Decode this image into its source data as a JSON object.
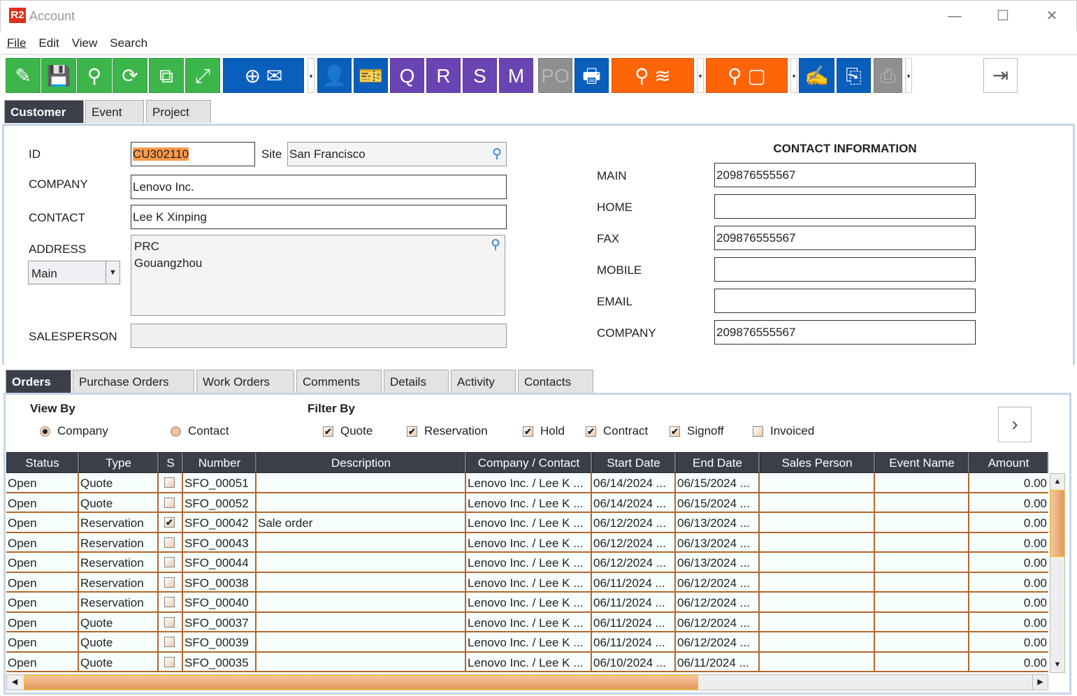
{
  "window": {
    "logo": "R2",
    "title": "Account",
    "minimize_icon": "minimize-icon",
    "maximize_icon": "maximize-icon",
    "close_icon": "close-icon"
  },
  "menu": [
    "File",
    "Edit",
    "View",
    "Search"
  ],
  "toolbar": [
    {
      "name": "edit-broom",
      "icon": "✎",
      "color": "green"
    },
    {
      "name": "save",
      "icon": "💾",
      "color": "green"
    },
    {
      "name": "search",
      "icon": "⚲",
      "color": "green"
    },
    {
      "name": "refresh",
      "icon": "⟳",
      "color": "green"
    },
    {
      "name": "hierarchy",
      "icon": "⧉",
      "color": "green"
    },
    {
      "name": "expand",
      "icon": "⤢",
      "color": "green"
    },
    {
      "name": "new-email",
      "icon": "⊕ ✉",
      "color": "blue"
    },
    {
      "name": "contact-person",
      "icon": "👤",
      "color": "blue"
    },
    {
      "name": "ticket",
      "icon": "🎫",
      "color": "blue"
    },
    {
      "name": "quote-doc",
      "icon": "Q",
      "color": "purple"
    },
    {
      "name": "reservation-doc",
      "icon": "R",
      "color": "purple"
    },
    {
      "name": "signoff-doc",
      "icon": "S",
      "color": "purple"
    },
    {
      "name": "m-doc",
      "icon": "M",
      "color": "purple"
    },
    {
      "name": "po-doc",
      "icon": "PO",
      "color": "gray"
    },
    {
      "name": "cash-register",
      "icon": "🖶",
      "color": "blue"
    },
    {
      "name": "search-inventory",
      "icon": "⚲ ≋",
      "color": "orange"
    },
    {
      "name": "search-box",
      "icon": "⚲ ▢",
      "color": "orange"
    },
    {
      "name": "edit-card",
      "icon": "✍",
      "color": "blue"
    },
    {
      "name": "copy-docs",
      "icon": "⎘",
      "color": "blue"
    },
    {
      "name": "print",
      "icon": "⎙",
      "color": "gray"
    }
  ],
  "exit_icon": "exit-icon",
  "top_tabs": [
    "Customer",
    "Event",
    "Project"
  ],
  "form": {
    "id_label": "ID",
    "id_value": "CU302110",
    "site_label": "Site",
    "site_value": "San Francisco",
    "company_label": "COMPANY",
    "company_value": "Lenovo Inc.",
    "contact_label": "CONTACT",
    "contact_value": "Lee K Xinping",
    "address_label": "ADDRESS",
    "address_type": "Main",
    "address_lines": [
      "PRC",
      "Gouangzhou"
    ],
    "salesperson_label": "SALESPERSON",
    "salesperson_value": ""
  },
  "contact_info": {
    "heading": "CONTACT INFORMATION",
    "fields": [
      {
        "label": "MAIN",
        "value": "209876555567"
      },
      {
        "label": "HOME",
        "value": ""
      },
      {
        "label": "FAX",
        "value": "209876555567"
      },
      {
        "label": "MOBILE",
        "value": ""
      },
      {
        "label": "EMAIL",
        "value": ""
      },
      {
        "label": "COMPANY",
        "value": "209876555567"
      }
    ]
  },
  "bottom_tabs": [
    "Orders",
    "Purchase Orders",
    "Work Orders",
    "Comments",
    "Details",
    "Activity",
    "Contacts"
  ],
  "view_by": {
    "label": "View By",
    "options": [
      {
        "label": "Company",
        "selected": true
      },
      {
        "label": "Contact",
        "selected": false
      }
    ]
  },
  "filter_by": {
    "label": "Filter By",
    "options": [
      {
        "label": "Quote",
        "checked": true
      },
      {
        "label": "Reservation",
        "checked": true
      },
      {
        "label": "Hold",
        "checked": true
      },
      {
        "label": "Contract",
        "checked": true
      },
      {
        "label": "Signoff",
        "checked": true
      },
      {
        "label": "Invoiced",
        "checked": false
      }
    ]
  },
  "table": {
    "columns": [
      "Status",
      "Type",
      "S",
      "Number",
      "Description",
      "Company / Contact",
      "Start Date",
      "End Date",
      "Sales Person",
      "Event Name",
      "Amount"
    ],
    "rows": [
      [
        "Open",
        "Quote",
        false,
        "SFO_00051",
        "",
        "Lenovo Inc. / Lee K ...",
        "06/14/2024 ...",
        "06/15/2024 ...",
        "",
        "",
        "0.00"
      ],
      [
        "Open",
        "Quote",
        false,
        "SFO_00052",
        "",
        "Lenovo Inc. / Lee K ...",
        "06/14/2024 ...",
        "06/15/2024 ...",
        "",
        "",
        "0.00"
      ],
      [
        "Open",
        "Reservation",
        true,
        "SFO_00042",
        "Sale order",
        "Lenovo Inc. / Lee K ...",
        "06/12/2024 ...",
        "06/13/2024 ...",
        "",
        "",
        "0.00"
      ],
      [
        "Open",
        "Reservation",
        false,
        "SFO_00043",
        "",
        "Lenovo Inc. / Lee K ...",
        "06/12/2024 ...",
        "06/13/2024 ...",
        "",
        "",
        "0.00"
      ],
      [
        "Open",
        "Reservation",
        false,
        "SFO_00044",
        "",
        "Lenovo Inc. / Lee K ...",
        "06/12/2024 ...",
        "06/13/2024 ...",
        "",
        "",
        "0.00"
      ],
      [
        "Open",
        "Reservation",
        false,
        "SFO_00038",
        "",
        "Lenovo Inc. / Lee K ...",
        "06/11/2024 ...",
        "06/12/2024 ...",
        "",
        "",
        "0.00"
      ],
      [
        "Open",
        "Reservation",
        false,
        "SFO_00040",
        "",
        "Lenovo Inc. / Lee K ...",
        "06/11/2024 ...",
        "06/12/2024 ...",
        "",
        "",
        "0.00"
      ],
      [
        "Open",
        "Quote",
        false,
        "SFO_00037",
        "",
        "Lenovo Inc. / Lee K ...",
        "06/11/2024 ...",
        "06/12/2024 ...",
        "",
        "",
        "0.00"
      ],
      [
        "Open",
        "Quote",
        false,
        "SFO_00039",
        "",
        "Lenovo Inc. / Lee K ...",
        "06/11/2024 ...",
        "06/12/2024 ...",
        "",
        "",
        "0.00"
      ],
      [
        "Open",
        "Quote",
        false,
        "SFO_00035",
        "",
        "Lenovo Inc. / Lee K ...",
        "06/10/2024 ...",
        "06/11/2024 ...",
        "",
        "",
        "0.00"
      ]
    ]
  }
}
